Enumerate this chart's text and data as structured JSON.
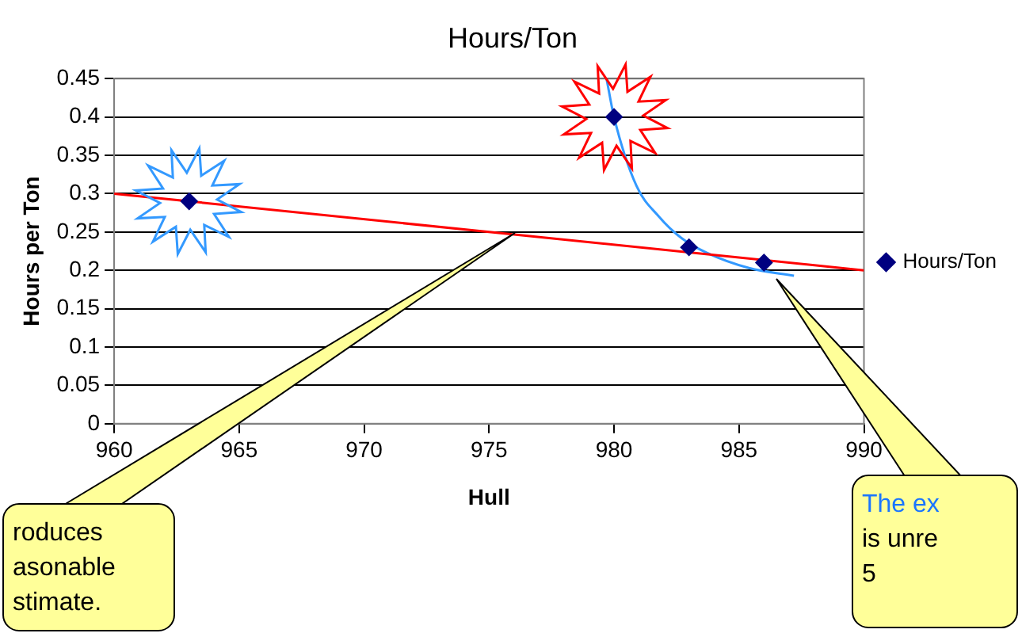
{
  "chart_data": {
    "type": "scatter",
    "title": "Hours/Ton",
    "xlabel": "Hull",
    "ylabel": "Hours per Ton",
    "xlim": [
      960,
      990
    ],
    "xticks": [
      960,
      965,
      970,
      975,
      980,
      985,
      990
    ],
    "ylim": [
      0,
      0.45
    ],
    "yticks": [
      0,
      0.05,
      0.1,
      0.15,
      0.2,
      0.25,
      0.3,
      0.35,
      0.4,
      0.45
    ],
    "grid": "y",
    "legend": "right",
    "series": [
      {
        "name": "Hours/Ton",
        "color": "#000080",
        "marker": "diamond",
        "x": [
          963,
          980,
          983,
          986
        ],
        "values": [
          0.29,
          0.4,
          0.23,
          0.21
        ]
      },
      {
        "type": "line",
        "color": "#ff0000",
        "marker": "none",
        "x": [
          960,
          990
        ],
        "values": [
          0.3,
          0.2
        ]
      },
      {
        "type": "line",
        "color": "#3399ff",
        "marker": "none",
        "x": [
          979.7,
          980,
          980.9,
          981.8,
          982.7,
          983.7,
          985.4,
          987.2
        ],
        "values": [
          0.45,
          0.4,
          0.31,
          0.27,
          0.242,
          0.223,
          0.203,
          0.193
        ]
      }
    ],
    "annotations": [
      "roduces\nasonable\nstimate.",
      "The ex\nis unre\n5"
    ]
  }
}
